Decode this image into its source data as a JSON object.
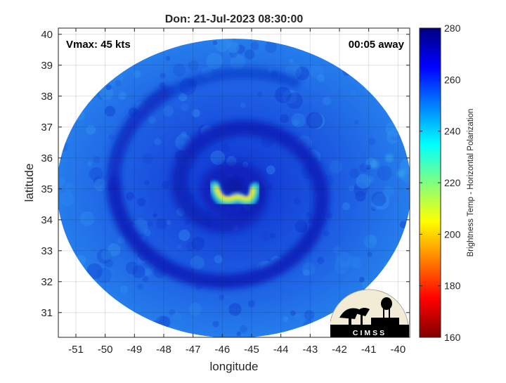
{
  "chart_data": {
    "type": "heatmap",
    "title": "Don: 21-Jul-2023 08:30:00",
    "xlabel": "longitude",
    "ylabel": "latitude",
    "xlim": [
      -51.6,
      -39.6
    ],
    "ylim": [
      30.2,
      40.2
    ],
    "xticks": [
      -51,
      -50,
      -49,
      -48,
      -47,
      -46,
      -45,
      -44,
      -43,
      -42,
      -41,
      -40
    ],
    "yticks": [
      31,
      32,
      33,
      34,
      35,
      36,
      37,
      38,
      39,
      40
    ],
    "xtick_labels": [
      "-51",
      "-50",
      "-49",
      "-48",
      "-47",
      "-46",
      "-45",
      "-44",
      "-43",
      "-42",
      "-41",
      "-40"
    ],
    "ytick_labels": [
      "31",
      "32",
      "33",
      "34",
      "35",
      "36",
      "37",
      "38",
      "39",
      "40"
    ],
    "grid": true,
    "annotations": {
      "top_left": "Vmax: 45 kts",
      "top_right": "00:05 away"
    },
    "colorbar": {
      "label": "Brightness Temp - Horizontal Polarization",
      "range": [
        160,
        280
      ],
      "ticks": [
        160,
        180,
        200,
        220,
        240,
        260,
        280
      ],
      "tick_labels": [
        "160",
        "180",
        "200",
        "220",
        "240",
        "260",
        "280"
      ],
      "colormap": "jet"
    },
    "storm_center": {
      "lon": -45.6,
      "lat": 34.95
    },
    "eyewall_min_temp": 200,
    "background_temp": 255,
    "colors": {
      "swath_base": "#1e64e6",
      "band_dark": "#0a22b8",
      "eyewall": "#f0e628"
    }
  },
  "logo": {
    "text": "CIMSS",
    "icon": "cimss-logo"
  }
}
